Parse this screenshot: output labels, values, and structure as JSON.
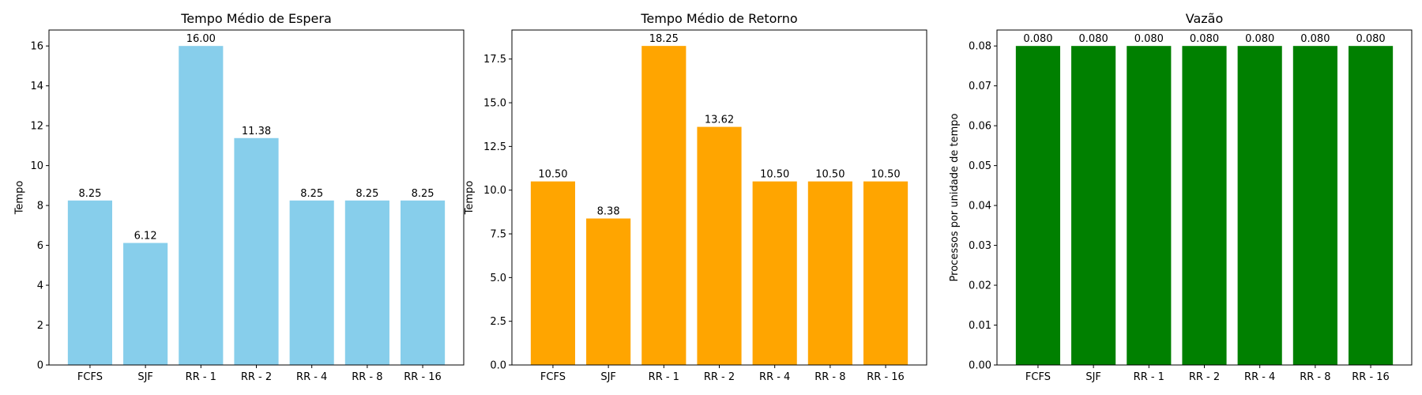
{
  "chart_data": [
    {
      "type": "bar",
      "title": "Tempo Médio de Espera",
      "xlabel": "",
      "ylabel": "Tempo",
      "categories": [
        "FCFS",
        "SJF",
        "RR - 1",
        "RR - 2",
        "RR - 4",
        "RR - 8",
        "RR - 16"
      ],
      "values": [
        8.25,
        6.12,
        16.0,
        11.38,
        8.25,
        8.25,
        8.25
      ],
      "data_labels": [
        "8.25",
        "6.12",
        "16.00",
        "11.38",
        "8.25",
        "8.25",
        "8.25"
      ],
      "ylim": [
        0,
        16.8
      ],
      "yticks": [
        0,
        2,
        4,
        6,
        8,
        10,
        12,
        14,
        16
      ],
      "ytick_labels": [
        "0",
        "2",
        "4",
        "6",
        "8",
        "10",
        "12",
        "14",
        "16"
      ],
      "color": "#87ceeb",
      "grid": false
    },
    {
      "type": "bar",
      "title": "Tempo Médio de Retorno",
      "xlabel": "",
      "ylabel": "Tempo",
      "categories": [
        "FCFS",
        "SJF",
        "RR - 1",
        "RR - 2",
        "RR - 4",
        "RR - 8",
        "RR - 16"
      ],
      "values": [
        10.5,
        8.38,
        18.25,
        13.62,
        10.5,
        10.5,
        10.5
      ],
      "data_labels": [
        "10.50",
        "8.38",
        "18.25",
        "13.62",
        "10.50",
        "10.50",
        "10.50"
      ],
      "ylim": [
        0,
        19.16
      ],
      "yticks": [
        0,
        2.5,
        5,
        7.5,
        10,
        12.5,
        15,
        17.5
      ],
      "ytick_labels": [
        "0.0",
        "2.5",
        "5.0",
        "7.5",
        "10.0",
        "12.5",
        "15.0",
        "17.5"
      ],
      "color": "#ffa500",
      "grid": false
    },
    {
      "type": "bar",
      "title": "Vazão",
      "xlabel": "",
      "ylabel": "Processos por unidade de tempo",
      "categories": [
        "FCFS",
        "SJF",
        "RR - 1",
        "RR - 2",
        "RR - 4",
        "RR - 8",
        "RR - 16"
      ],
      "values": [
        0.08,
        0.08,
        0.08,
        0.08,
        0.08,
        0.08,
        0.08
      ],
      "data_labels": [
        "0.080",
        "0.080",
        "0.080",
        "0.080",
        "0.080",
        "0.080",
        "0.080"
      ],
      "ylim": [
        0,
        0.084
      ],
      "yticks": [
        0,
        0.01,
        0.02,
        0.03,
        0.04,
        0.05,
        0.06,
        0.07,
        0.08
      ],
      "ytick_labels": [
        "0.00",
        "0.01",
        "0.02",
        "0.03",
        "0.04",
        "0.05",
        "0.06",
        "0.07",
        "0.08"
      ],
      "color": "#008000",
      "grid": false
    }
  ]
}
